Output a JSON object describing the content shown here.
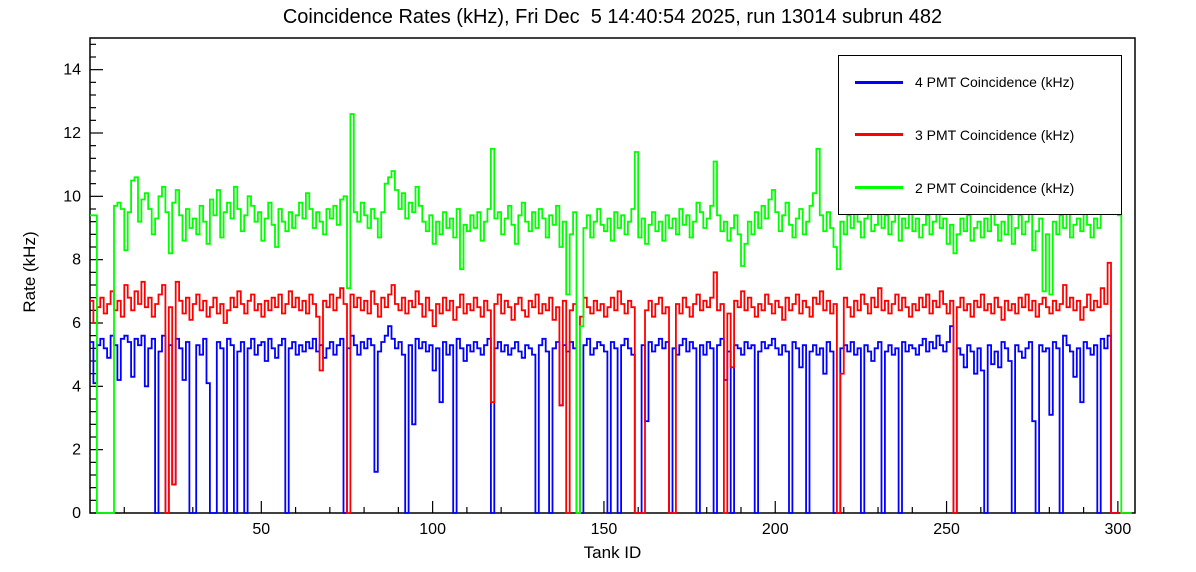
{
  "chart_data": {
    "type": "line",
    "subtype": "step-histogram",
    "title": "Coincidence Rates (kHz), Fri Dec  5 14:40:54 2025, run 13014 subrun 482",
    "xlabel": "Tank ID",
    "ylabel": "Rate (kHz)",
    "xlim": [
      0,
      305
    ],
    "ylim": [
      0,
      15
    ],
    "xticks": [
      50,
      100,
      150,
      200,
      250,
      300
    ],
    "yticks": [
      0,
      2,
      4,
      6,
      8,
      10,
      12,
      14
    ],
    "x_minor_step": 10,
    "y_minor_step": 0.4,
    "grid": false,
    "legend_position": "top-right",
    "series": [
      {
        "name": "4 PMT Coincidence (kHz)",
        "color": "#0000ff",
        "values": [
          5.4,
          4.1,
          5.3,
          5.5,
          5.2,
          4.9,
          5.6,
          5.3,
          4.2,
          5.5,
          5.6,
          5.4,
          4.3,
          5.5,
          5.3,
          5.6,
          4.0,
          5.2,
          5.5,
          0,
          5.1,
          5.6,
          0,
          5.3,
          0.9,
          5.5,
          5.2,
          4.2,
          5.4,
          0,
          0,
          5.3,
          5.0,
          5.5,
          4.1,
          0,
          0,
          5.4,
          5.2,
          0,
          5.5,
          5.3,
          0,
          5.1,
          5.4,
          0,
          5.2,
          5.5,
          5.0,
          5.3,
          5.4,
          4.8,
          5.5,
          5.2,
          4.9,
          5.3,
          5.5,
          0,
          5.2,
          5.4,
          5.0,
          5.3,
          5.1,
          5.4,
          5.2,
          5.5,
          5.1,
          5.3,
          4.9,
          5.2,
          5.4,
          5.0,
          5.3,
          5.5,
          0,
          5.2,
          5.6,
          5.3,
          5.0,
          5.4,
          5.2,
          5.5,
          5.3,
          1.3,
          5.1,
          5.4,
          5.6,
          5.9,
          5.5,
          5.2,
          5.4,
          5.0,
          0,
          5.3,
          2.8,
          5.5,
          5.2,
          5.4,
          5.1,
          5.3,
          4.5,
          5.2,
          3.5,
          5.4,
          5.0,
          5.3,
          0,
          5.5,
          5.2,
          4.8,
          5.3,
          5.1,
          5.4,
          5.2,
          5.0,
          5.3,
          5.5,
          0,
          5.2,
          5.4,
          5.1,
          5.3,
          5.0,
          5.2,
          5.4,
          5.1,
          4.9,
          5.3,
          5.2,
          5.0,
          0,
          5.3,
          5.5,
          5.1,
          0,
          5.2,
          5.4,
          3.4,
          5.3,
          5.1,
          5.4,
          5.2,
          0,
          0,
          5.3,
          5.5,
          5.0,
          5.2,
          5.4,
          5.3,
          5.1,
          0,
          5.4,
          5.2,
          0,
          5.3,
          5.5,
          5.2,
          5.0,
          0,
          0,
          5.3,
          2.9,
          5.4,
          5.1,
          5.3,
          5.5,
          5.2,
          5.4,
          0,
          5.2,
          5.0,
          5.3,
          5.5,
          5.1,
          5.4,
          5.2,
          0,
          5.3,
          5.0,
          5.4,
          5.2,
          0,
          5.3,
          5.5,
          4.2,
          5.1,
          0,
          5.3,
          5.2,
          5.0,
          5.4,
          5.2,
          5.3,
          0,
          5.1,
          5.4,
          5.2,
          5.3,
          5.5,
          5.2,
          5.0,
          5.3,
          5.1,
          0,
          5.4,
          5.2,
          4.6,
          5.3,
          0,
          5.1,
          5.3,
          5.0,
          5.2,
          4.4,
          5.4,
          5.1,
          0,
          0,
          5.2,
          5.3,
          5.1,
          5.4,
          5.0,
          5.2,
          0,
          5.3,
          5.1,
          4.8,
          5.2,
          5.4,
          0,
          5.1,
          5.3,
          5.0,
          5.2,
          0,
          5.4,
          5.1,
          5.3,
          5.2,
          5.0,
          5.3,
          5.5,
          5.1,
          5.4,
          5.2,
          5.6,
          5.3,
          5.1,
          5.4,
          5.9,
          0,
          5.2,
          5.0,
          4.6,
          5.3,
          5.1,
          4.4,
          5.2,
          4.5,
          0,
          5.3,
          4.7,
          5.1,
          4.6,
          5.4,
          5.2,
          4.8,
          0,
          5.3,
          5.1,
          4.9,
          5.2,
          5.4,
          2.9,
          0,
          5.3,
          5.1,
          5.2,
          3.1,
          5.4,
          5.2,
          0,
          5.6,
          5.3,
          5.1,
          4.3,
          5.2,
          3.5,
          5.4,
          5.2,
          5.0,
          5.3,
          0,
          5.5,
          5.2,
          5.6,
          0,
          0,
          0,
          0,
          0,
          0
        ]
      },
      {
        "name": "3 PMT Coincidence (kHz)",
        "color": "#ff0000",
        "values": [
          6.7,
          6.0,
          6.5,
          6.8,
          6.3,
          6.6,
          7.0,
          6.4,
          6.7,
          6.2,
          7.2,
          6.8,
          6.4,
          7.0,
          6.6,
          7.3,
          6.5,
          6.8,
          6.2,
          6.6,
          6.9,
          7.2,
          0,
          6.5,
          0.9,
          7.3,
          6.7,
          6.3,
          6.8,
          6.1,
          6.6,
          6.9,
          6.4,
          6.7,
          6.2,
          6.5,
          6.8,
          6.3,
          6.6,
          6.0,
          6.4,
          6.8,
          6.5,
          7.0,
          6.6,
          6.3,
          6.7,
          6.9,
          6.4,
          6.6,
          6.2,
          6.7,
          6.4,
          6.8,
          6.5,
          6.9,
          6.3,
          6.6,
          7.0,
          6.5,
          6.8,
          6.4,
          6.7,
          6.3,
          6.9,
          6.6,
          6.2,
          4.5,
          6.7,
          6.5,
          6.9,
          6.4,
          6.8,
          7.1,
          6.6,
          0,
          6.9,
          6.5,
          6.8,
          6.4,
          6.7,
          6.3,
          7.0,
          6.6,
          6.2,
          6.8,
          6.5,
          6.9,
          7.2,
          6.6,
          6.4,
          6.8,
          6.3,
          6.7,
          6.5,
          7.0,
          6.6,
          6.2,
          6.8,
          6.4,
          5.9,
          6.6,
          6.3,
          6.8,
          6.4,
          6.7,
          6.1,
          6.5,
          6.9,
          6.3,
          6.6,
          6.4,
          6.8,
          6.5,
          6.2,
          6.7,
          6.4,
          3.5,
          6.6,
          6.9,
          6.3,
          6.7,
          6.5,
          6.1,
          6.6,
          6.8,
          6.4,
          6.2,
          6.7,
          6.5,
          6.9,
          6.3,
          6.6,
          6.4,
          6.8,
          6.1,
          6.5,
          3.4,
          6.7,
          0,
          6.4,
          6.6,
          0,
          6.2,
          6.8,
          6.5,
          6.3,
          6.7,
          6.4,
          6.6,
          6.2,
          6.5,
          6.8,
          6.4,
          7.0,
          6.6,
          6.3,
          6.7,
          6.5,
          0,
          0,
          0,
          6.4,
          6.7,
          6.2,
          6.6,
          6.8,
          6.3,
          6.5,
          0,
          0,
          6.6,
          6.3,
          6.8,
          6.5,
          6.2,
          6.6,
          6.9,
          6.4,
          6.7,
          6.5,
          6.8,
          7.6,
          6.4,
          6.6,
          0,
          6.3,
          4.6,
          6.7,
          6.5,
          7.0,
          6.4,
          6.8,
          6.5,
          6.2,
          6.6,
          6.4,
          6.9,
          6.6,
          6.3,
          6.7,
          6.5,
          6.1,
          6.8,
          6.4,
          6.6,
          6.9,
          6.3,
          6.7,
          6.5,
          6.2,
          6.8,
          6.6,
          7.0,
          6.4,
          6.7,
          6.3,
          6.6,
          0,
          4.4,
          6.8,
          6.5,
          6.2,
          6.7,
          6.4,
          6.9,
          6.6,
          6.3,
          6.8,
          6.5,
          7.1,
          6.4,
          6.7,
          6.3,
          6.6,
          6.9,
          6.4,
          6.8,
          6.5,
          6.2,
          6.6,
          6.4,
          6.8,
          6.5,
          6.9,
          6.3,
          6.7,
          6.5,
          7.0,
          6.6,
          6.3,
          6.7,
          0,
          6.5,
          6.8,
          6.4,
          6.6,
          6.2,
          6.7,
          6.5,
          6.9,
          6.4,
          6.6,
          6.3,
          6.8,
          6.5,
          6.1,
          6.7,
          6.4,
          6.6,
          6.3,
          6.8,
          6.5,
          6.9,
          6.4,
          6.7,
          6.2,
          6.6,
          6.8,
          6.5,
          6.3,
          6.7,
          6.4,
          6.6,
          7.2,
          6.5,
          6.8,
          6.4,
          6.7,
          6.1,
          6.5,
          6.9,
          6.4,
          6.7,
          6.5,
          7.1,
          6.6,
          7.9,
          0,
          0,
          0,
          0,
          0,
          0
        ]
      },
      {
        "name": "2 PMT Coincidence (kHz)",
        "color": "#00ff00",
        "values": [
          9.4,
          9.4,
          0,
          0,
          0,
          0,
          0,
          9.7,
          9.8,
          9.6,
          8.3,
          9.5,
          10.5,
          10.6,
          9.2,
          9.9,
          10.1,
          9.6,
          8.8,
          9.3,
          10.0,
          10.3,
          9.5,
          8.2,
          9.8,
          10.2,
          9.4,
          8.6,
          9.6,
          9.0,
          9.3,
          8.8,
          9.7,
          9.2,
          8.5,
          9.9,
          9.4,
          10.2,
          8.7,
          9.5,
          9.8,
          9.3,
          10.3,
          9.6,
          8.9,
          9.4,
          10.0,
          9.7,
          9.2,
          9.5,
          8.6,
          9.3,
          9.8,
          9.1,
          8.4,
          9.6,
          9.2,
          8.9,
          9.5,
          9.0,
          9.4,
          9.8,
          9.3,
          10.1,
          9.6,
          9.0,
          9.5,
          9.2,
          8.8,
          9.6,
          9.3,
          9.7,
          9.1,
          9.9,
          10.0,
          7.1,
          12.6,
          9.5,
          9.2,
          9.8,
          9.4,
          9.0,
          9.6,
          9.3,
          8.7,
          9.5,
          10.4,
          10.6,
          10.8,
          10.2,
          9.6,
          10.1,
          9.3,
          9.8,
          9.5,
          10.3,
          9.7,
          9.2,
          8.9,
          9.4,
          8.5,
          9.2,
          8.8,
          9.5,
          9.0,
          9.3,
          8.7,
          9.6,
          7.7,
          9.1,
          8.9,
          9.4,
          9.0,
          9.5,
          8.6,
          9.2,
          9.6,
          11.5,
          9.3,
          9.5,
          8.8,
          9.3,
          9.7,
          9.1,
          8.5,
          9.4,
          9.8,
          9.2,
          8.9,
          9.5,
          9.0,
          9.6,
          9.3,
          8.7,
          9.4,
          9.1,
          9.7,
          8.4,
          9.2,
          6.9,
          8.8,
          9.5,
          0,
          5.9,
          9.0,
          9.4,
          8.7,
          9.2,
          9.6,
          9.1,
          8.9,
          9.3,
          8.6,
          9.5,
          9.0,
          9.4,
          8.8,
          9.2,
          9.6,
          11.4,
          8.7,
          9.3,
          8.5,
          9.1,
          9.5,
          8.9,
          9.2,
          8.6,
          9.4,
          9.0,
          9.3,
          8.8,
          9.6,
          9.1,
          9.4,
          8.7,
          9.2,
          9.8,
          9.5,
          9.0,
          9.3,
          9.7,
          11.1,
          9.4,
          8.9,
          9.2,
          8.6,
          9.0,
          9.4,
          8.8,
          7.8,
          8.5,
          9.2,
          8.8,
          9.5,
          9.0,
          9.7,
          9.3,
          9.9,
          10.2,
          9.5,
          8.9,
          9.4,
          9.8,
          9.1,
          8.7,
          9.3,
          9.6,
          8.8,
          9.2,
          9.7,
          10.1,
          11.5,
          9.4,
          8.9,
          9.5,
          9.0,
          8.4,
          7.7,
          9.2,
          8.8,
          9.4,
          9.0,
          9.6,
          9.2,
          8.7,
          9.3,
          9.5,
          8.9,
          9.1,
          9.6,
          9.0,
          9.4,
          8.8,
          9.2,
          9.7,
          8.6,
          9.3,
          9.0,
          9.5,
          8.9,
          9.3,
          8.7,
          9.1,
          9.4,
          8.8,
          9.2,
          9.6,
          9.0,
          9.3,
          8.5,
          9.1,
          8.2,
          8.8,
          9.3,
          8.9,
          9.4,
          8.6,
          9.0,
          9.2,
          8.7,
          9.3,
          8.9,
          9.5,
          9.1,
          8.6,
          9.2,
          8.8,
          9.4,
          8.5,
          9.0,
          9.4,
          8.8,
          9.2,
          9.6,
          8.3,
          8.9,
          9.3,
          7.0,
          8.8,
          6.9,
          9.2,
          8.8,
          9.4,
          9.0,
          9.5,
          8.7,
          9.1,
          9.3,
          8.9,
          9.5,
          9.1,
          8.7,
          9.3,
          9.0,
          9.6,
          10.6,
          12.7,
          9.8,
          12.1,
          9.4,
          0,
          0,
          0
        ]
      }
    ]
  }
}
